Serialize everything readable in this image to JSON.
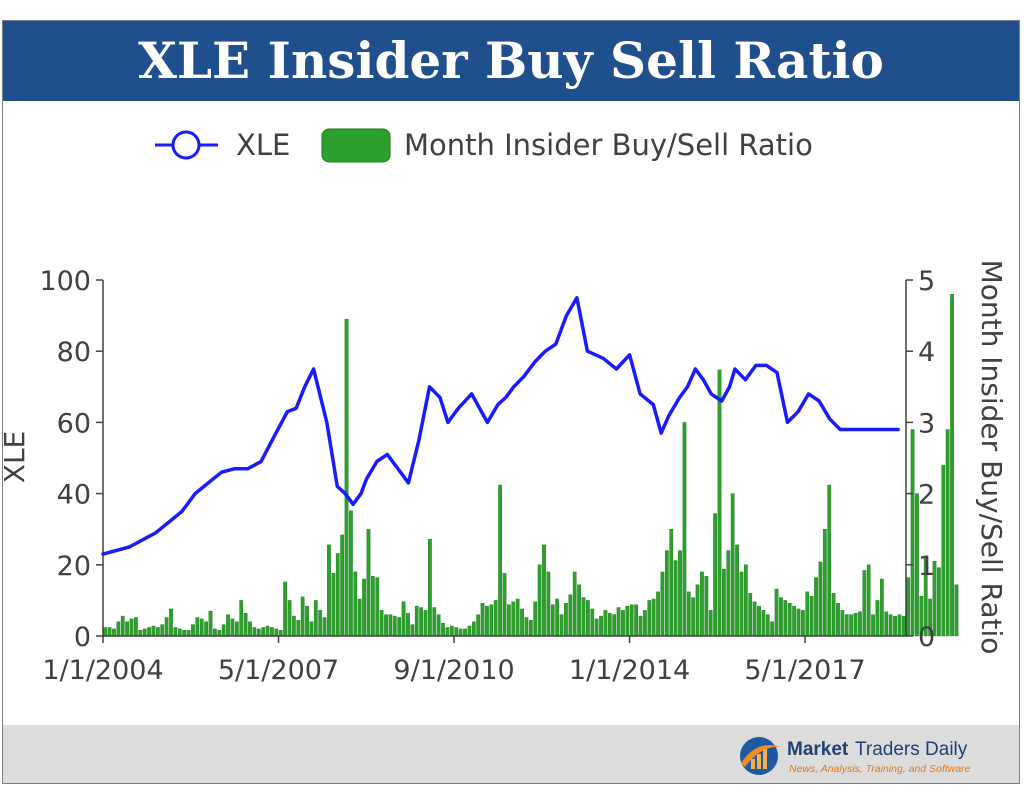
{
  "title": "XLE Insider Buy Sell Ratio",
  "brand": {
    "name_bold": "Market",
    "name_rest": "Traders Daily",
    "tagline": "News, Analysis, Training, and Software"
  },
  "colors": {
    "title_bg": "#1f4f8c",
    "line": "#1a1aff",
    "bar": "#2ca02c",
    "bar_edge": "#1e7a1e",
    "footer_bg": "#dcdcdc"
  },
  "chart_data": {
    "type": "bar+line",
    "legend": {
      "placement": "top-center",
      "items": [
        "XLE",
        "Month Insider Buy/Sell Ratio"
      ]
    },
    "xlabel": "",
    "ylabel_left": "XLE",
    "ylabel_right": "Month Insider Buy/Sell Ratio",
    "ylim_left": [
      0,
      100
    ],
    "ylim_right": [
      0,
      5
    ],
    "yticks_left": [
      "0",
      "20",
      "40",
      "60",
      "80",
      "100"
    ],
    "yticks_right": [
      "0",
      "1",
      "2",
      "3",
      "4",
      "5"
    ],
    "xlim": [
      2004.0,
      2019.25
    ],
    "xtick_labels": [
      "1/1/2004",
      "5/1/2007",
      "9/1/2010",
      "1/1/2014",
      "5/1/2017"
    ],
    "xtick_positions": [
      2004.0,
      2007.333,
      2010.667,
      2014.0,
      2017.333
    ],
    "grid": false,
    "series": [
      {
        "name": "XLE",
        "axis": "left",
        "type": "line",
        "x": [
          2004.0,
          2004.5,
          2005.0,
          2005.5,
          2005.75,
          2006.0,
          2006.25,
          2006.5,
          2006.75,
          2007.0,
          2007.25,
          2007.5,
          2007.67,
          2007.83,
          2008.0,
          2008.25,
          2008.45,
          2008.6,
          2008.75,
          2008.9,
          2009.0,
          2009.2,
          2009.4,
          2009.6,
          2009.8,
          2010.0,
          2010.2,
          2010.4,
          2010.55,
          2010.75,
          2011.0,
          2011.3,
          2011.5,
          2011.65,
          2011.8,
          2012.0,
          2012.2,
          2012.4,
          2012.6,
          2012.8,
          2013.0,
          2013.2,
          2013.5,
          2013.75,
          2014.0,
          2014.2,
          2014.45,
          2014.6,
          2014.75,
          2014.95,
          2015.1,
          2015.25,
          2015.4,
          2015.55,
          2015.75,
          2015.9,
          2016.0,
          2016.2,
          2016.4,
          2016.6,
          2016.8,
          2017.0,
          2017.2,
          2017.4,
          2017.6,
          2017.8,
          2018.0,
          2018.2,
          2018.35,
          2018.5,
          2018.7,
          2018.85,
          2019.0,
          2019.1
        ],
        "y": [
          23,
          25,
          29,
          35,
          40,
          43,
          46,
          47,
          47,
          49,
          56,
          63,
          64,
          70,
          75,
          60,
          42,
          40,
          37,
          40,
          44,
          49,
          51,
          47,
          43,
          55,
          70,
          67,
          60,
          64,
          68,
          60,
          65,
          67,
          70,
          73,
          77,
          80,
          82,
          90,
          95,
          80,
          78,
          75,
          79,
          68,
          65,
          57,
          62,
          67,
          70,
          75,
          72,
          68,
          66,
          70,
          75,
          72,
          76,
          76,
          74,
          60,
          63,
          68,
          66,
          61,
          58,
          58,
          58,
          58,
          58,
          58,
          58,
          58
        ]
      },
      {
        "name": "Month Insider Buy/Sell Ratio",
        "axis": "right",
        "type": "bar",
        "start_x": 2004.0,
        "step_months": 1,
        "values": [
          0.12,
          0.12,
          0.1,
          0.2,
          0.28,
          0.2,
          0.24,
          0.26,
          0.08,
          0.1,
          0.12,
          0.14,
          0.12,
          0.16,
          0.26,
          0.38,
          0.12,
          0.1,
          0.08,
          0.08,
          0.16,
          0.26,
          0.24,
          0.2,
          0.35,
          0.1,
          0.08,
          0.16,
          0.3,
          0.24,
          0.2,
          0.5,
          0.32,
          0.2,
          0.12,
          0.1,
          0.12,
          0.14,
          0.12,
          0.1,
          0.08,
          0.76,
          0.5,
          0.28,
          0.22,
          0.55,
          0.42,
          0.2,
          0.5,
          0.36,
          0.26,
          1.28,
          0.88,
          1.16,
          1.42,
          4.45,
          1.76,
          0.9,
          0.52,
          0.8,
          1.5,
          0.84,
          0.82,
          0.36,
          0.3,
          0.3,
          0.28,
          0.26,
          0.48,
          0.32,
          0.16,
          0.42,
          0.4,
          0.36,
          1.36,
          0.4,
          0.3,
          0.18,
          0.12,
          0.14,
          0.12,
          0.1,
          0.1,
          0.14,
          0.2,
          0.3,
          0.46,
          0.42,
          0.44,
          0.5,
          2.12,
          0.88,
          0.44,
          0.48,
          0.52,
          0.38,
          0.26,
          0.22,
          0.48,
          1.0,
          1.28,
          0.9,
          0.44,
          0.52,
          0.3,
          0.46,
          0.58,
          0.9,
          0.72,
          0.54,
          0.5,
          0.38,
          0.24,
          0.28,
          0.36,
          0.32,
          0.3,
          0.4,
          0.36,
          0.42,
          0.44,
          0.44,
          0.28,
          0.36,
          0.5,
          0.52,
          0.62,
          0.9,
          1.2,
          1.5,
          1.06,
          1.2,
          3.0,
          0.62,
          0.54,
          0.72,
          0.9,
          0.84,
          0.36,
          1.72,
          3.74,
          0.94,
          1.2,
          2.0,
          1.28,
          0.9,
          1.0,
          0.6,
          0.48,
          0.42,
          0.36,
          0.3,
          0.2,
          0.66,
          0.54,
          0.5,
          0.46,
          0.42,
          0.38,
          0.36,
          0.62,
          0.56,
          0.82,
          1.04,
          1.5,
          2.12,
          0.6,
          0.46,
          0.36,
          0.3,
          0.3,
          0.32,
          0.34,
          0.92,
          1.0,
          0.3,
          0.5,
          0.8,
          0.34,
          0.3,
          0.28,
          0.3,
          0.28,
          0.82,
          2.9,
          2.0,
          0.56,
          1.12,
          0.52,
          1.05,
          0.96,
          2.4,
          2.9,
          4.8,
          0.72
        ]
      }
    ]
  }
}
